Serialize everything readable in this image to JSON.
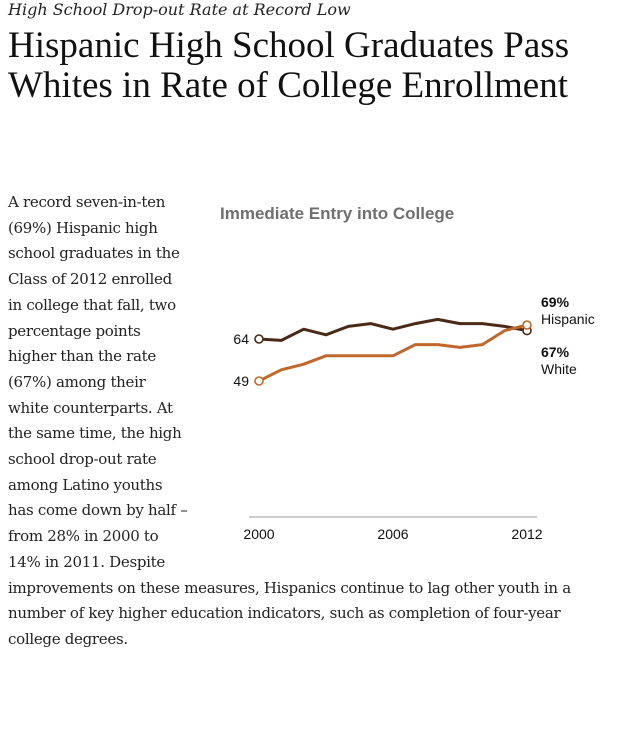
{
  "kicker": "High School Drop-out Rate at Record Low",
  "headline": "Hispanic High School Graduates Pass Whites in Rate of College Enrollment",
  "body": "A record seven-in-ten (69%) Hispanic high school graduates in the Class of 2012 enrolled in college that fall, two percentage points higher than the rate (67%) among their white counterparts. At the same time, the high school drop-out rate among Latino youths has come down by half – from 28% in 2000 to 14% in 2011. Despite improvements on these measures, Hispanics continue to lag other youth in a number of key higher education indicators, such as completion of four-year college degrees.",
  "colors": {
    "white_series": "#4a2a17",
    "hispanic_series": "#c0682b",
    "axis": "#999999"
  },
  "chart_data": {
    "type": "line",
    "title": "Immediate Entry into College",
    "xlabel": "",
    "ylabel": "",
    "x": [
      2000,
      2001,
      2002,
      2003,
      2004,
      2005,
      2006,
      2007,
      2008,
      2009,
      2010,
      2011,
      2012
    ],
    "xticks": [
      "2000",
      "2006",
      "2012"
    ],
    "ylim": [
      45,
      72
    ],
    "grid": false,
    "series": [
      {
        "name": "White",
        "start_label": "64",
        "end_value_label": "67%",
        "end_name_label": "White",
        "values": [
          64,
          63.5,
          67.5,
          65.5,
          68.5,
          69.5,
          67.5,
          69.5,
          71,
          69.5,
          69.5,
          68.5,
          67
        ]
      },
      {
        "name": "Hispanic",
        "start_label": "49",
        "end_value_label": "69%",
        "end_name_label": "Hispanic",
        "values": [
          49,
          53,
          55,
          58,
          58,
          58,
          58,
          62,
          62,
          61,
          62,
          67,
          69
        ]
      }
    ]
  }
}
